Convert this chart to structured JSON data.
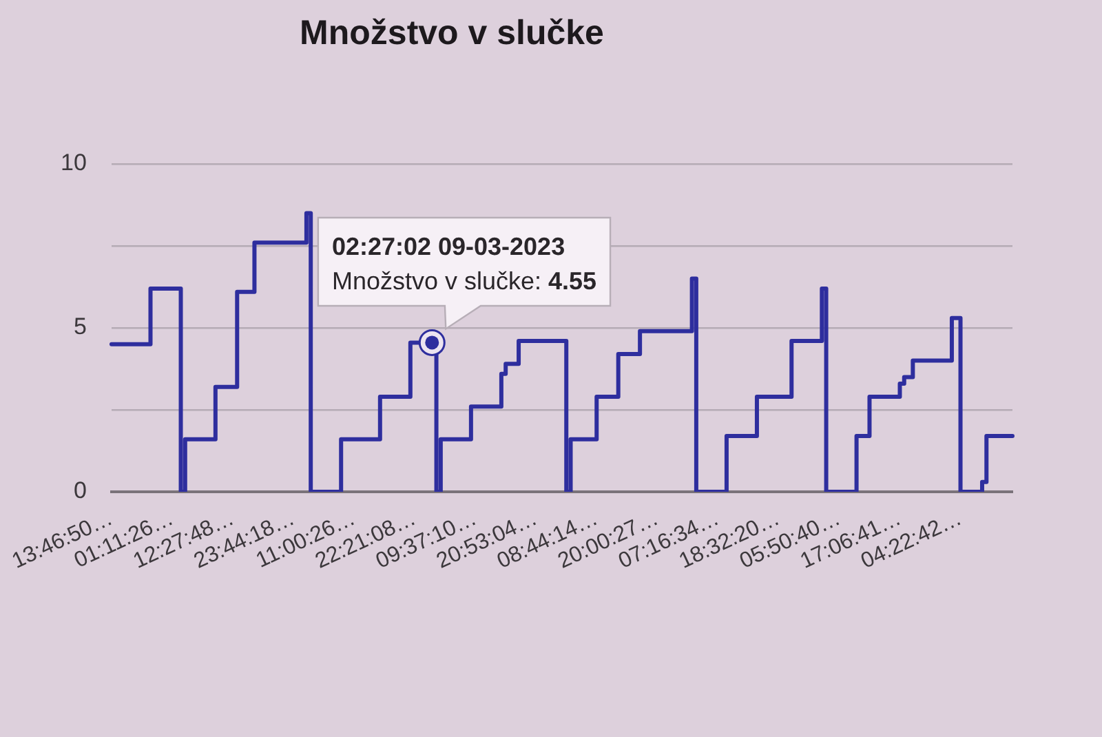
{
  "chart_data": {
    "type": "step",
    "title": "Množstvo v slučke",
    "categories": [
      "13:46:50…",
      null,
      null,
      null,
      null,
      null,
      null,
      null,
      null,
      null,
      null,
      null,
      null,
      null,
      "01:11:26…",
      null,
      null,
      null,
      null,
      null,
      null,
      null,
      null,
      null,
      null,
      null,
      null,
      null,
      "12:27:48…",
      null,
      null,
      null,
      null,
      null,
      null,
      null,
      null,
      null,
      null,
      null,
      null,
      null,
      "23:44:18…",
      null,
      null,
      null,
      null,
      null,
      null,
      null,
      null,
      null,
      null,
      null,
      null,
      null,
      "11:00:26…",
      null,
      null,
      null,
      null,
      null,
      null,
      null,
      null,
      null,
      null,
      null,
      null,
      null,
      "22:21:08…",
      null,
      null,
      null,
      null,
      null,
      null,
      null,
      null,
      null,
      null,
      null,
      null,
      null,
      "09:37:10…",
      null,
      null,
      null,
      null,
      null,
      null,
      null,
      null,
      null,
      null,
      null,
      null,
      null,
      "20:53:04…",
      null,
      null,
      null,
      null,
      null,
      null,
      null,
      null,
      null,
      null,
      null,
      null,
      null,
      "08:44:14…",
      null,
      null,
      null,
      null,
      null,
      null,
      null,
      null,
      null,
      null,
      null,
      null,
      null,
      "20:00:27…",
      null,
      null,
      null,
      null,
      null,
      null,
      null,
      null,
      null,
      null,
      null,
      null,
      null,
      "07:16:34…",
      null,
      null,
      null,
      null,
      null,
      null,
      null,
      null,
      null,
      null,
      null,
      null,
      null,
      "18:32:20…",
      null,
      null,
      null,
      null,
      null,
      null,
      null,
      null,
      null,
      null,
      null,
      null,
      null,
      "05:50:40…",
      null,
      null,
      null,
      null,
      null,
      null,
      null,
      null,
      null,
      null,
      null,
      null,
      null,
      "17:06:41…",
      null,
      null,
      null,
      null,
      null,
      null,
      null,
      null,
      null,
      null,
      null,
      null,
      null,
      "04:22:42…",
      null,
      null,
      null,
      null,
      null,
      null,
      null,
      null,
      null,
      null,
      null,
      null
    ],
    "values": [
      4.5,
      4.5,
      4.5,
      4.5,
      4.5,
      4.5,
      4.5,
      4.5,
      4.5,
      6.2,
      6.2,
      6.2,
      6.2,
      6.2,
      6.2,
      6.2,
      0,
      1.6,
      1.6,
      1.6,
      1.6,
      1.6,
      1.6,
      1.6,
      3.2,
      3.2,
      3.2,
      3.2,
      3.2,
      6.1,
      6.1,
      6.1,
      6.1,
      7.6,
      7.6,
      7.6,
      7.6,
      7.6,
      7.6,
      7.6,
      7.6,
      7.6,
      7.6,
      7.6,
      7.6,
      8.5,
      0,
      0,
      0,
      0,
      0,
      0,
      0,
      1.6,
      1.6,
      1.6,
      1.6,
      1.6,
      1.6,
      1.6,
      1.6,
      1.6,
      2.9,
      2.9,
      2.9,
      2.9,
      2.9,
      2.9,
      2.9,
      4.55,
      4.55,
      4.55,
      4.55,
      4.55,
      4.55,
      0,
      1.6,
      1.6,
      1.6,
      1.6,
      1.6,
      1.6,
      1.6,
      2.6,
      2.6,
      2.6,
      2.6,
      2.6,
      2.6,
      2.6,
      3.6,
      3.9,
      3.9,
      3.9,
      4.6,
      4.6,
      4.6,
      4.6,
      4.6,
      4.6,
      4.6,
      4.6,
      4.6,
      4.6,
      4.6,
      0,
      1.6,
      1.6,
      1.6,
      1.6,
      1.6,
      1.6,
      2.9,
      2.9,
      2.9,
      2.9,
      2.9,
      4.2,
      4.2,
      4.2,
      4.2,
      4.2,
      4.9,
      4.9,
      4.9,
      4.9,
      4.9,
      4.9,
      4.9,
      4.9,
      4.9,
      4.9,
      4.9,
      4.9,
      6.5,
      0,
      0,
      0,
      0,
      0,
      0,
      0,
      1.7,
      1.7,
      1.7,
      1.7,
      1.7,
      1.7,
      1.7,
      2.9,
      2.9,
      2.9,
      2.9,
      2.9,
      2.9,
      2.9,
      2.9,
      4.6,
      4.6,
      4.6,
      4.6,
      4.6,
      4.6,
      4.6,
      6.2,
      0,
      0,
      0,
      0,
      0,
      0,
      0,
      1.7,
      1.7,
      1.7,
      2.9,
      2.9,
      2.9,
      2.9,
      2.9,
      2.9,
      2.9,
      3.3,
      3.5,
      3.5,
      4,
      4,
      4,
      4,
      4,
      4,
      4,
      4,
      4,
      5.3,
      5.3,
      0,
      0,
      0,
      0,
      0,
      0.3,
      1.7,
      1.7,
      1.7,
      1.7,
      1.7,
      1.7,
      1.7
    ],
    "color": "#2e2e9e",
    "ylim": [
      0,
      10
    ],
    "yticks": [
      0,
      {
        "value": 2.5,
        "label": null
      },
      5,
      {
        "value": 7.5,
        "label": null
      },
      10
    ],
    "grid": "y",
    "annotations": [
      "02:27:02 09-03-2023\nMnožstvo v slučke: 4.55"
    ]
  }
}
